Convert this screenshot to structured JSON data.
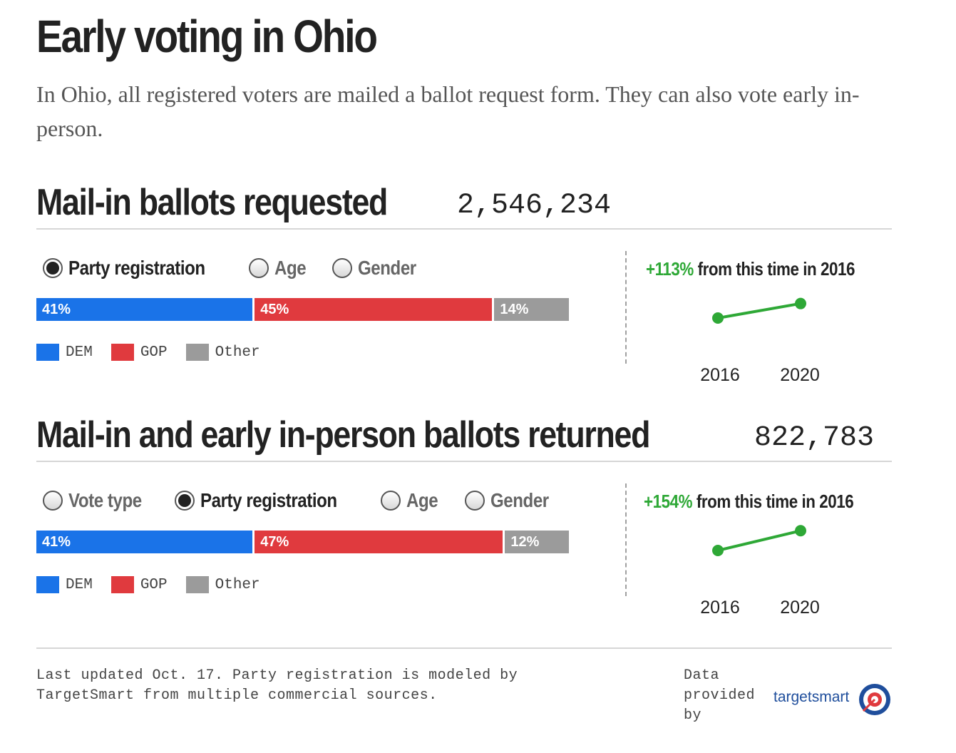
{
  "title": "Early voting in Ohio",
  "subtitle": "In Ohio, all registered voters are mailed a ballot request form. They can also vote early in-person.",
  "colors": {
    "dem": "#1a73e8",
    "gop": "#e03a3e",
    "other": "#9b9b9b",
    "growth": "#2ea836"
  },
  "sections": [
    {
      "title": "Mail-in ballots requested",
      "count": "2,546,234",
      "options": [
        {
          "label": "Party registration",
          "selected": true
        },
        {
          "label": "Age",
          "selected": false
        },
        {
          "label": "Gender",
          "selected": false
        }
      ],
      "growth_pct": "+113%",
      "growth_text": " from this time in 2016"
    },
    {
      "title": "Mail-in and early in-person ballots returned",
      "count": "822,783",
      "options": [
        {
          "label": "Vote type",
          "selected": false
        },
        {
          "label": "Party registration",
          "selected": true
        },
        {
          "label": "Age",
          "selected": false
        },
        {
          "label": "Gender",
          "selected": false
        }
      ],
      "growth_pct": "+154%",
      "growth_text": " from this time in 2016"
    }
  ],
  "legend": [
    "DEM",
    "GOP",
    "Other"
  ],
  "chart_data": [
    {
      "type": "bar",
      "stacked": true,
      "categories": [
        "DEM",
        "GOP",
        "Other"
      ],
      "values": [
        41,
        45,
        14
      ],
      "labels": [
        "41%",
        "45%",
        "14%"
      ]
    },
    {
      "type": "line",
      "x": [
        "2016",
        "2020"
      ],
      "y": [
        1.0,
        2.13
      ]
    },
    {
      "type": "bar",
      "stacked": true,
      "categories": [
        "DEM",
        "GOP",
        "Other"
      ],
      "values": [
        41,
        47,
        12
      ],
      "labels": [
        "41%",
        "47%",
        "12%"
      ]
    },
    {
      "type": "line",
      "x": [
        "2016",
        "2020"
      ],
      "y": [
        1.0,
        2.54
      ]
    }
  ],
  "footer": {
    "note": "Last updated Oct. 17. Party registration is modeled by TargetSmart from multiple commercial sources.",
    "provided_by": "Data provided by",
    "brand": "targetsmart"
  }
}
